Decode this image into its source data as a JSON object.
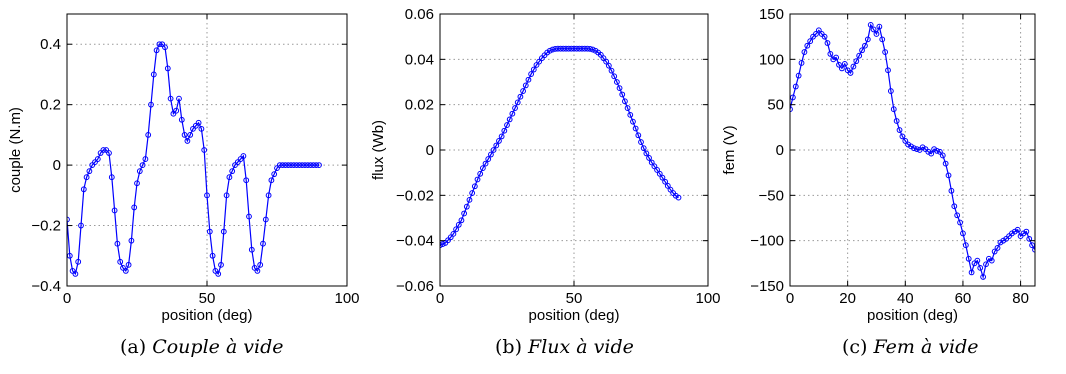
{
  "chart_data": [
    {
      "type": "line",
      "xlabel": "position (deg)",
      "ylabel": "couple (N.m)",
      "xlim": [
        0,
        100
      ],
      "ylim": [
        -0.4,
        0.5
      ],
      "xticks": [
        0,
        50,
        100
      ],
      "xtick_labels": [
        "0",
        "50",
        "100"
      ],
      "yticks": [
        -0.4,
        -0.2,
        0,
        0.2,
        0.4
      ],
      "ytick_labels": [
        "−0.4",
        "−0.2",
        "0",
        "0.2",
        "0.4"
      ],
      "grid": true,
      "marker": "circle",
      "color": "#0000ff",
      "x": [
        0,
        1,
        2,
        3,
        4,
        5,
        6,
        7,
        8,
        9,
        10,
        11,
        12,
        13,
        14,
        15,
        16,
        17,
        18,
        19,
        20,
        21,
        22,
        23,
        24,
        25,
        26,
        27,
        28,
        29,
        30,
        31,
        32,
        33,
        34,
        35,
        36,
        37,
        38,
        39,
        40,
        41,
        42,
        43,
        44,
        45,
        46,
        47,
        48,
        49,
        50,
        51,
        52,
        53,
        54,
        55,
        56,
        57,
        58,
        59,
        60,
        61,
        62,
        63,
        64,
        65,
        66,
        67,
        68,
        69,
        70,
        71,
        72,
        73,
        74,
        75,
        76,
        77,
        78,
        79,
        80,
        81,
        82,
        83,
        84,
        85,
        86,
        87,
        88,
        89,
        90
      ],
      "y": [
        -0.18,
        -0.3,
        -0.35,
        -0.36,
        -0.32,
        -0.2,
        -0.08,
        -0.04,
        -0.02,
        0.0,
        0.01,
        0.02,
        0.04,
        0.05,
        0.05,
        0.04,
        -0.04,
        -0.15,
        -0.26,
        -0.32,
        -0.34,
        -0.35,
        -0.33,
        -0.25,
        -0.14,
        -0.06,
        -0.02,
        0.0,
        0.02,
        0.1,
        0.2,
        0.3,
        0.38,
        0.4,
        0.4,
        0.39,
        0.32,
        0.22,
        0.17,
        0.18,
        0.22,
        0.15,
        0.1,
        0.08,
        0.1,
        0.12,
        0.13,
        0.14,
        0.12,
        0.05,
        -0.1,
        -0.22,
        -0.3,
        -0.35,
        -0.36,
        -0.33,
        -0.22,
        -0.1,
        -0.04,
        -0.02,
        0.0,
        0.01,
        0.02,
        0.03,
        -0.05,
        -0.17,
        -0.28,
        -0.34,
        -0.35,
        -0.33,
        -0.26,
        -0.18,
        -0.1,
        -0.05,
        -0.03,
        -0.01,
        0.0,
        0.0,
        0.0,
        0.0,
        0.0,
        0.0,
        0.0,
        0.0,
        0.0,
        0.0,
        0.0,
        0.0,
        0.0,
        0.0,
        0.0
      ]
    },
    {
      "type": "line",
      "xlabel": "position (deg)",
      "ylabel": "flux (Wb)",
      "xlim": [
        0,
        100
      ],
      "ylim": [
        -0.06,
        0.06
      ],
      "xticks": [
        0,
        50,
        100
      ],
      "xtick_labels": [
        "0",
        "50",
        "100"
      ],
      "yticks": [
        -0.06,
        -0.04,
        -0.02,
        0,
        0.02,
        0.04,
        0.06
      ],
      "ytick_labels": [
        "−0.06",
        "−0.04",
        "−0.02",
        "0",
        "0.02",
        "0.04",
        "0.06"
      ],
      "grid": true,
      "marker": "circle",
      "color": "#0000ff",
      "x": [
        0,
        1,
        2,
        3,
        4,
        5,
        6,
        7,
        8,
        9,
        10,
        11,
        12,
        13,
        14,
        15,
        16,
        17,
        18,
        19,
        20,
        21,
        22,
        23,
        24,
        25,
        26,
        27,
        28,
        29,
        30,
        31,
        32,
        33,
        34,
        35,
        36,
        37,
        38,
        39,
        40,
        41,
        42,
        43,
        44,
        45,
        46,
        47,
        48,
        49,
        50,
        51,
        52,
        53,
        54,
        55,
        56,
        57,
        58,
        59,
        60,
        61,
        62,
        63,
        64,
        65,
        66,
        67,
        68,
        69,
        70,
        71,
        72,
        73,
        74,
        75,
        76,
        77,
        78,
        79,
        80,
        81,
        82,
        83,
        84,
        85,
        86,
        87,
        88,
        89
      ],
      "y": [
        -0.042,
        -0.0415,
        -0.041,
        -0.0398,
        -0.0385,
        -0.037,
        -0.035,
        -0.033,
        -0.031,
        -0.028,
        -0.025,
        -0.022,
        -0.019,
        -0.016,
        -0.013,
        -0.0105,
        -0.008,
        -0.006,
        -0.004,
        -0.002,
        0.0,
        0.002,
        0.004,
        0.006,
        0.0085,
        0.011,
        0.0135,
        0.016,
        0.0185,
        0.021,
        0.0235,
        0.026,
        0.0285,
        0.031,
        0.0335,
        0.0355,
        0.0375,
        0.039,
        0.0405,
        0.0418,
        0.043,
        0.0438,
        0.0443,
        0.0446,
        0.0447,
        0.0447,
        0.0447,
        0.0447,
        0.0447,
        0.0447,
        0.0447,
        0.0447,
        0.0447,
        0.0447,
        0.0447,
        0.0447,
        0.0446,
        0.0443,
        0.0438,
        0.043,
        0.042,
        0.0405,
        0.039,
        0.0372,
        0.035,
        0.0325,
        0.03,
        0.0273,
        0.0245,
        0.0215,
        0.0185,
        0.0155,
        0.0125,
        0.0095,
        0.0065,
        0.0035,
        0.0008,
        -0.0015,
        -0.0035,
        -0.0055,
        -0.0072,
        -0.0088,
        -0.0105,
        -0.0122,
        -0.014,
        -0.0158,
        -0.0175,
        -0.019,
        -0.0202,
        -0.021
      ]
    },
    {
      "type": "line",
      "xlabel": "position (deg)",
      "ylabel": "fem (V)",
      "xlim": [
        0,
        85
      ],
      "ylim": [
        -150,
        150
      ],
      "xticks": [
        0,
        20,
        40,
        60,
        80
      ],
      "xtick_labels": [
        "0",
        "20",
        "40",
        "60",
        "80"
      ],
      "yticks": [
        -150,
        -100,
        -50,
        0,
        50,
        100,
        150
      ],
      "ytick_labels": [
        "−150",
        "−100",
        "−50",
        "0",
        "50",
        "100",
        "150"
      ],
      "grid": true,
      "marker": "circle",
      "color": "#0000ff",
      "x": [
        0,
        1,
        2,
        3,
        4,
        5,
        6,
        7,
        8,
        9,
        10,
        11,
        12,
        13,
        14,
        15,
        16,
        17,
        18,
        19,
        20,
        21,
        22,
        23,
        24,
        25,
        26,
        27,
        28,
        29,
        30,
        31,
        32,
        33,
        34,
        35,
        36,
        37,
        38,
        39,
        40,
        41,
        42,
        43,
        44,
        45,
        46,
        47,
        48,
        49,
        50,
        51,
        52,
        53,
        54,
        55,
        56,
        57,
        58,
        59,
        60,
        61,
        62,
        63,
        64,
        65,
        66,
        67,
        68,
        69,
        70,
        71,
        72,
        73,
        74,
        75,
        76,
        77,
        78,
        79,
        80,
        81,
        82,
        83,
        84,
        85
      ],
      "y": [
        45,
        58,
        70,
        82,
        96,
        108,
        115,
        120,
        125,
        128,
        132,
        128,
        125,
        118,
        106,
        100,
        102,
        94,
        90,
        95,
        88,
        85,
        92,
        98,
        104,
        110,
        115,
        122,
        138,
        133,
        128,
        136,
        122,
        108,
        88,
        65,
        45,
        32,
        22,
        15,
        10,
        6,
        4,
        2,
        1,
        0,
        3,
        1,
        -2,
        -4,
        1,
        -1,
        -2,
        -6,
        -15,
        -28,
        -45,
        -62,
        -72,
        -80,
        -92,
        -105,
        -120,
        -135,
        -125,
        -122,
        -130,
        -140,
        -126,
        -120,
        -122,
        -112,
        -108,
        -102,
        -100,
        -98,
        -95,
        -92,
        -90,
        -88,
        -95,
        -92,
        -90,
        -98,
        -105,
        -110
      ]
    }
  ],
  "captions": [
    {
      "tag": "(a)",
      "text": "Couple à vide"
    },
    {
      "tag": "(b)",
      "text": "Flux à vide"
    },
    {
      "tag": "(c)",
      "text": "Fem à vide"
    }
  ]
}
